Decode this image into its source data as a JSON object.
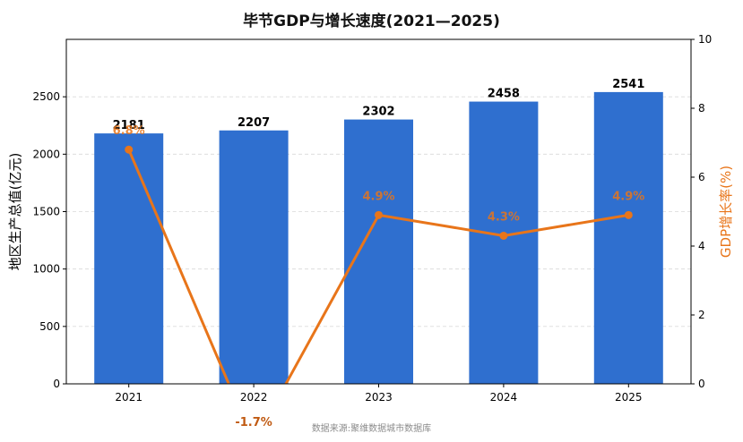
{
  "chart_data": {
    "type": "bar",
    "title": "毕节GDP与增长速度(2021—2025)",
    "categories": [
      "2021",
      "2022",
      "2023",
      "2024",
      "2025"
    ],
    "series": [
      {
        "name": "地区生产总值(亿元)",
        "type": "bar",
        "axis": "left",
        "values": [
          2181,
          2207,
          2302,
          2458,
          2541
        ],
        "color": "#2f6fcf"
      },
      {
        "name": "GDP增长率(%)",
        "type": "line",
        "axis": "right",
        "values": [
          6.8,
          -1.7,
          4.9,
          4.3,
          4.9
        ],
        "labels": [
          "6.8%",
          "-1.7%",
          "4.9%",
          "4.3%",
          "4.9%"
        ],
        "color": "#e8751a"
      }
    ],
    "ylabel": "地区生产总值(亿元)",
    "y2label": "GDP增长率(%)",
    "ylim": [
      0,
      3000
    ],
    "y2lim": [
      0,
      10
    ],
    "yticks": [
      "0",
      "500",
      "1000",
      "1500",
      "2000",
      "2500"
    ],
    "y2ticks": [
      "0",
      "2",
      "4",
      "6",
      "8",
      "10"
    ],
    "grid": "horizontal dashed",
    "source": "数据来源:聚维数据城市数据库"
  }
}
